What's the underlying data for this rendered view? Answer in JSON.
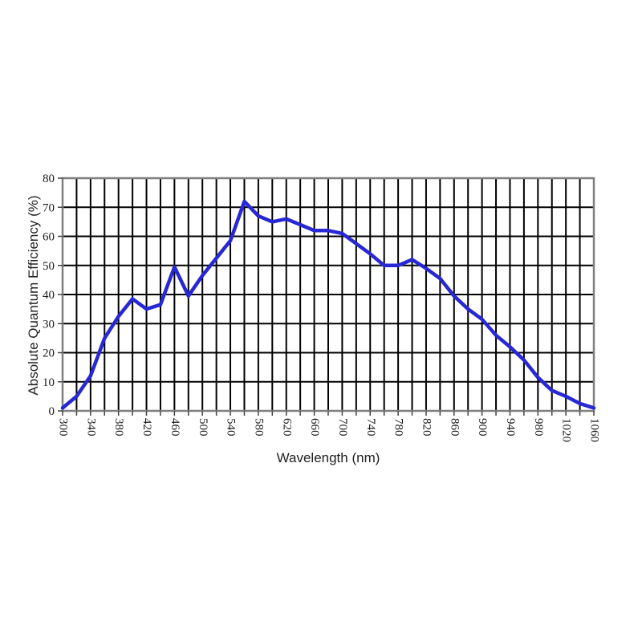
{
  "page": {
    "background": "#ffffff"
  },
  "chart_data": {
    "type": "line",
    "title": "",
    "xlabel": "Wavelength (nm)",
    "ylabel": "Absolute Quantum Efficiency (%)",
    "xlim": [
      300,
      1060
    ],
    "ylim": [
      0,
      80
    ],
    "grid": "on",
    "legend": "none",
    "x_gridline_step_nm": 20,
    "y_gridline_step_pct": 10,
    "x_ticks": [
      300,
      340,
      380,
      420,
      460,
      500,
      540,
      580,
      620,
      660,
      700,
      740,
      780,
      820,
      860,
      900,
      940,
      980,
      1020,
      1060
    ],
    "y_ticks": [
      0,
      10,
      20,
      30,
      40,
      50,
      60,
      70,
      80
    ],
    "series": [
      {
        "name": "absolute-quantum-efficiency",
        "color": "#2727d3",
        "x": [
          300,
          320,
          340,
          360,
          380,
          400,
          420,
          440,
          460,
          480,
          500,
          520,
          540,
          560,
          580,
          600,
          620,
          640,
          660,
          680,
          700,
          720,
          740,
          760,
          780,
          800,
          820,
          840,
          860,
          880,
          900,
          920,
          940,
          960,
          980,
          1000,
          1020,
          1040,
          1060
        ],
        "values": [
          1,
          5,
          12,
          25,
          32.5,
          38.5,
          35,
          36.5,
          49.5,
          39.5,
          46.5,
          52.5,
          58.5,
          72,
          67,
          65,
          66,
          64,
          62,
          62,
          61,
          57.5,
          54,
          50,
          50,
          52,
          49,
          45.5,
          39.5,
          35,
          31.5,
          26,
          22,
          17.5,
          11.5,
          7,
          5,
          2.5,
          1
        ]
      }
    ]
  },
  "style": {
    "gridline_color": "#000000",
    "frame_color": "#7f7f7f",
    "tick_color": "#444444",
    "tick_label_color": "#1a1a1a",
    "curve_color": "#2727d3",
    "background": "#ffffff"
  }
}
